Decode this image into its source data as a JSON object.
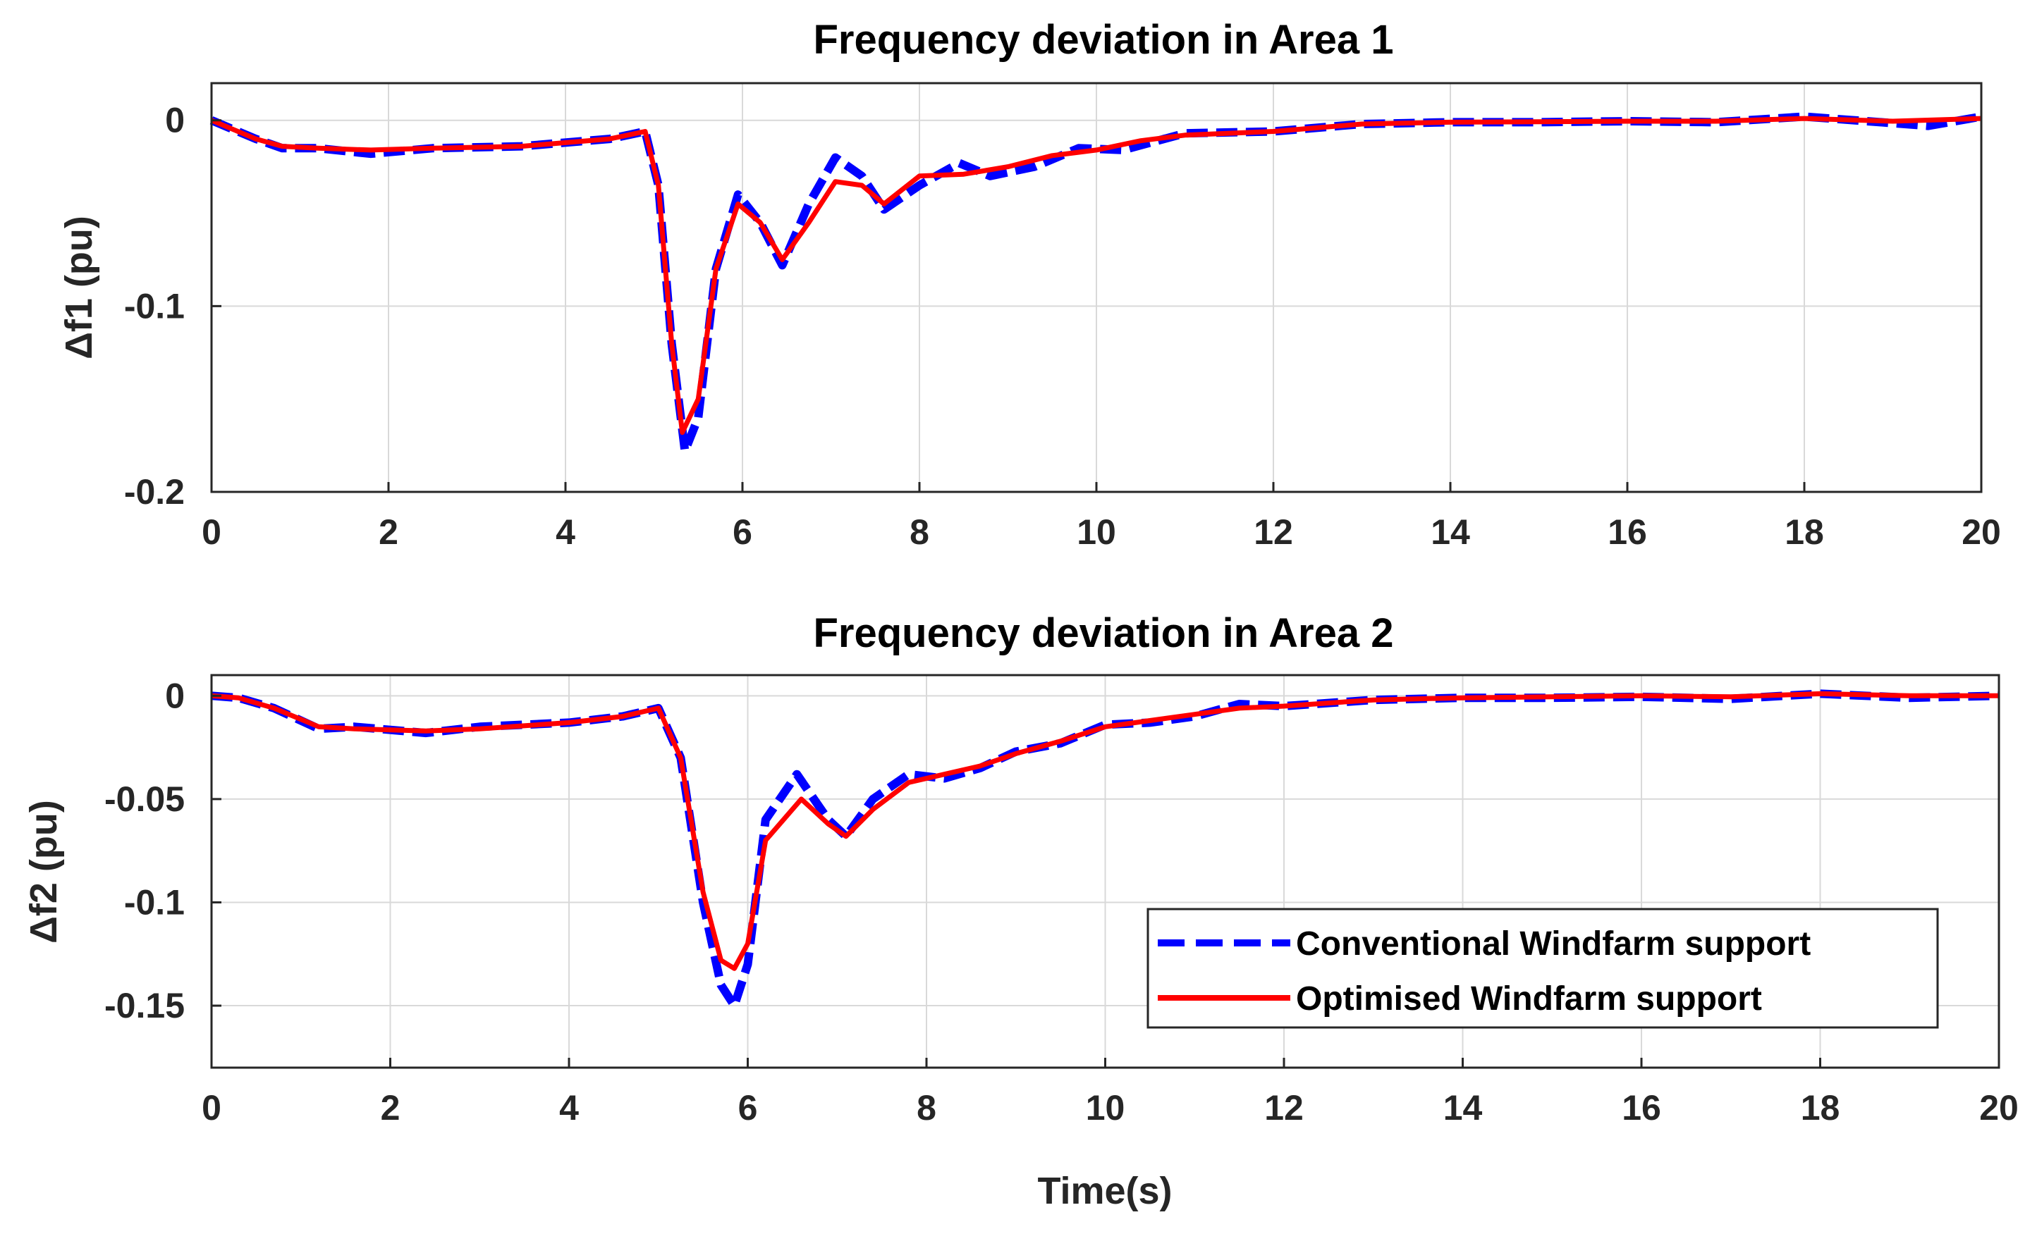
{
  "colors": {
    "conventional": "#0000ff",
    "optimised": "#ff0000",
    "axis": "#262626",
    "grid": "#d9d9d9"
  },
  "legend": {
    "entries": [
      "Conventional Windfarm support",
      "Optimised Windfarm support"
    ]
  },
  "chart_data": [
    {
      "type": "line",
      "title": "Frequency deviation in Area 1",
      "xlabel": "",
      "ylabel": "Δf1 (pu)",
      "xlim": [
        0,
        20
      ],
      "ylim": [
        -0.2,
        0.02
      ],
      "xticks": [
        0,
        2,
        4,
        6,
        8,
        10,
        12,
        14,
        16,
        18,
        20
      ],
      "xtick_labels": [
        "0",
        "2",
        "4",
        "6",
        "8",
        "10",
        "12",
        "14",
        "16",
        "18",
        "20"
      ],
      "yticks": [
        0,
        -0.1,
        -0.2
      ],
      "ytick_labels": [
        "0",
        "-0.1",
        "-0.2"
      ],
      "grid": true,
      "series": [
        {
          "name": "Conventional Windfarm support",
          "style": "dashed",
          "x": [
            0,
            0.2,
            0.5,
            0.8,
            1.2,
            1.8,
            2.5,
            3.5,
            4.5,
            4.9,
            5.05,
            5.2,
            5.35,
            5.5,
            5.7,
            5.95,
            6.2,
            6.45,
            6.75,
            7.05,
            7.35,
            7.6,
            8.0,
            8.45,
            8.8,
            9.3,
            9.8,
            10.3,
            11.0,
            12.0,
            13.0,
            14.0,
            15.0,
            16.0,
            17.0,
            18.0,
            19.0,
            19.4,
            20.0
          ],
          "y": [
            0,
            -0.004,
            -0.01,
            -0.015,
            -0.015,
            -0.018,
            -0.015,
            -0.014,
            -0.01,
            -0.006,
            -0.035,
            -0.12,
            -0.178,
            -0.16,
            -0.08,
            -0.04,
            -0.055,
            -0.078,
            -0.045,
            -0.02,
            -0.03,
            -0.048,
            -0.035,
            -0.023,
            -0.03,
            -0.025,
            -0.015,
            -0.016,
            -0.007,
            -0.006,
            -0.002,
            -0.001,
            -0.001,
            -0.0005,
            -0.001,
            0.002,
            -0.0015,
            -0.003,
            0.002
          ]
        },
        {
          "name": "Optimised Windfarm support",
          "style": "solid",
          "x": [
            0,
            0.2,
            0.5,
            0.8,
            1.2,
            1.8,
            2.5,
            3.5,
            4.5,
            4.9,
            5.05,
            5.2,
            5.32,
            5.5,
            5.7,
            5.95,
            6.2,
            6.45,
            6.75,
            7.05,
            7.35,
            7.6,
            8.0,
            8.5,
            9.0,
            9.5,
            10.0,
            10.5,
            11.0,
            12.0,
            13.0,
            14.0,
            15.0,
            16.0,
            17.0,
            18.0,
            19.0,
            20.0
          ],
          "y": [
            0,
            -0.004,
            -0.01,
            -0.014,
            -0.015,
            -0.016,
            -0.015,
            -0.014,
            -0.01,
            -0.006,
            -0.035,
            -0.12,
            -0.168,
            -0.15,
            -0.08,
            -0.045,
            -0.055,
            -0.075,
            -0.055,
            -0.033,
            -0.035,
            -0.045,
            -0.03,
            -0.029,
            -0.025,
            -0.019,
            -0.016,
            -0.011,
            -0.008,
            -0.006,
            -0.002,
            -0.001,
            -0.0008,
            -0.0005,
            -0.0005,
            0.001,
            -0.0005,
            0.001
          ]
        }
      ]
    },
    {
      "type": "line",
      "title": "Frequency deviation in Area 2",
      "xlabel": "Time(s)",
      "ylabel": "Δf2 (pu)",
      "xlim": [
        0,
        20
      ],
      "ylim": [
        -0.18,
        0.01
      ],
      "xticks": [
        0,
        2,
        4,
        6,
        8,
        10,
        12,
        14,
        16,
        18,
        20
      ],
      "xtick_labels": [
        "0",
        "2",
        "4",
        "6",
        "8",
        "10",
        "12",
        "14",
        "16",
        "18",
        "20"
      ],
      "yticks": [
        0,
        -0.05,
        -0.1,
        -0.15
      ],
      "ytick_labels": [
        "0",
        "-0.05",
        "-0.1",
        "-0.15"
      ],
      "grid": true,
      "series": [
        {
          "name": "Conventional Windfarm support",
          "style": "dashed",
          "x": [
            0,
            0.3,
            0.7,
            1.2,
            1.6,
            2.4,
            3.0,
            4.0,
            4.6,
            5.0,
            5.25,
            5.5,
            5.7,
            5.85,
            6.0,
            6.2,
            6.55,
            6.9,
            7.1,
            7.4,
            7.8,
            8.2,
            8.6,
            9.0,
            9.5,
            10.0,
            10.5,
            11.0,
            11.5,
            12.0,
            13.0,
            14.0,
            15.0,
            16.0,
            17.0,
            18.0,
            19.0,
            20.0
          ],
          "y": [
            0,
            -0.001,
            -0.006,
            -0.016,
            -0.015,
            -0.018,
            -0.015,
            -0.013,
            -0.01,
            -0.006,
            -0.03,
            -0.1,
            -0.14,
            -0.15,
            -0.13,
            -0.06,
            -0.038,
            -0.06,
            -0.068,
            -0.05,
            -0.038,
            -0.04,
            -0.035,
            -0.027,
            -0.023,
            -0.014,
            -0.013,
            -0.01,
            -0.004,
            -0.005,
            -0.002,
            -0.001,
            -0.001,
            -0.0005,
            -0.0015,
            0.001,
            -0.001,
            0
          ]
        },
        {
          "name": "Optimised Windfarm support",
          "style": "solid",
          "x": [
            0,
            0.3,
            0.7,
            1.2,
            1.6,
            2.4,
            3.0,
            4.0,
            4.6,
            5.0,
            5.25,
            5.5,
            5.7,
            5.85,
            6.0,
            6.2,
            6.6,
            6.9,
            7.1,
            7.4,
            7.8,
            8.2,
            8.6,
            9.0,
            9.5,
            10.0,
            10.5,
            11.0,
            11.5,
            12.0,
            13.0,
            14.0,
            15.0,
            16.0,
            17.0,
            18.0,
            19.0,
            20.0
          ],
          "y": [
            0,
            -0.001,
            -0.006,
            -0.015,
            -0.016,
            -0.017,
            -0.016,
            -0.013,
            -0.01,
            -0.006,
            -0.03,
            -0.095,
            -0.128,
            -0.132,
            -0.12,
            -0.07,
            -0.05,
            -0.062,
            -0.068,
            -0.055,
            -0.042,
            -0.038,
            -0.034,
            -0.028,
            -0.022,
            -0.015,
            -0.012,
            -0.009,
            -0.006,
            -0.005,
            -0.002,
            -0.001,
            -0.0005,
            0,
            -0.0005,
            0.001,
            0,
            0
          ]
        }
      ]
    }
  ]
}
